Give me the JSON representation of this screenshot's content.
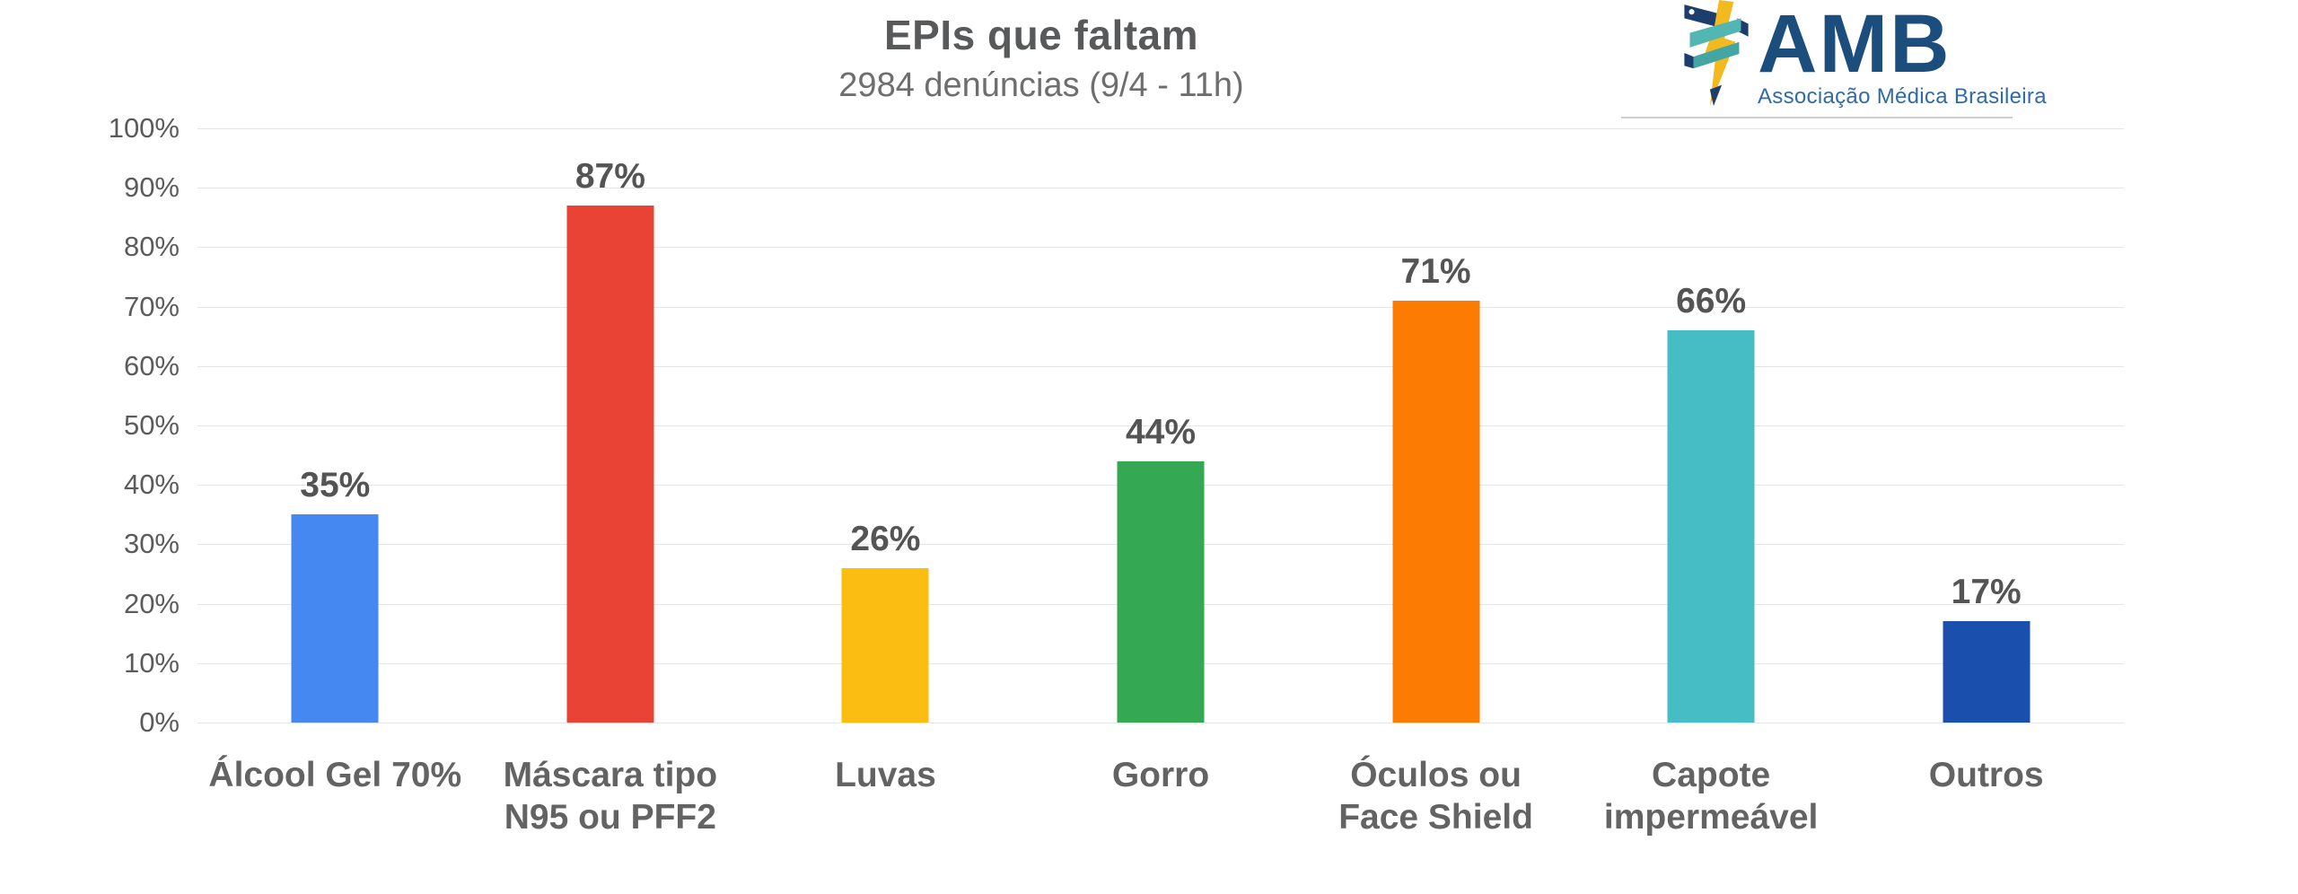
{
  "header": {
    "title": "EPIs que faltam",
    "subtitle": "2984 denúncias (9/4 - 11h)"
  },
  "logo": {
    "word": "AMB",
    "subtext": "Associação Médica Brasileira",
    "navy": "#1b4e7d",
    "subtext_blue": "#2f6ba8",
    "bolt_yellow": "#f2ba1e",
    "ribbon_teal": "#52b7b3",
    "ribbon_teal_dark": "#43a6a3"
  },
  "chart_data": {
    "type": "bar",
    "title": "EPIs que faltam",
    "subtitle": "2984 denúncias (9/4 - 11h)",
    "categories": [
      "Álcool Gel 70%",
      "Máscara tipo\nN95 ou PFF2",
      "Luvas",
      "Gorro",
      "Óculos ou\nFace Shield",
      "Capote\nimpermeável",
      "Outros"
    ],
    "values": [
      35,
      87,
      26,
      44,
      71,
      66,
      17
    ],
    "value_labels": [
      "35%",
      "87%",
      "26%",
      "44%",
      "71%",
      "66%",
      "17%"
    ],
    "bar_colors": [
      "#4688f1",
      "#e84335",
      "#fcbd13",
      "#35a853",
      "#fc7b03",
      "#46bcc5",
      "#1b4fae"
    ],
    "ylim": [
      0,
      100
    ],
    "yticks": [
      "0%",
      "10%",
      "20%",
      "30%",
      "40%",
      "50%",
      "60%",
      "70%",
      "80%",
      "90%",
      "100%"
    ],
    "grid": true,
    "gridline_color": "#e5e5e5",
    "legend": "none",
    "xlabel": "",
    "ylabel": ""
  }
}
